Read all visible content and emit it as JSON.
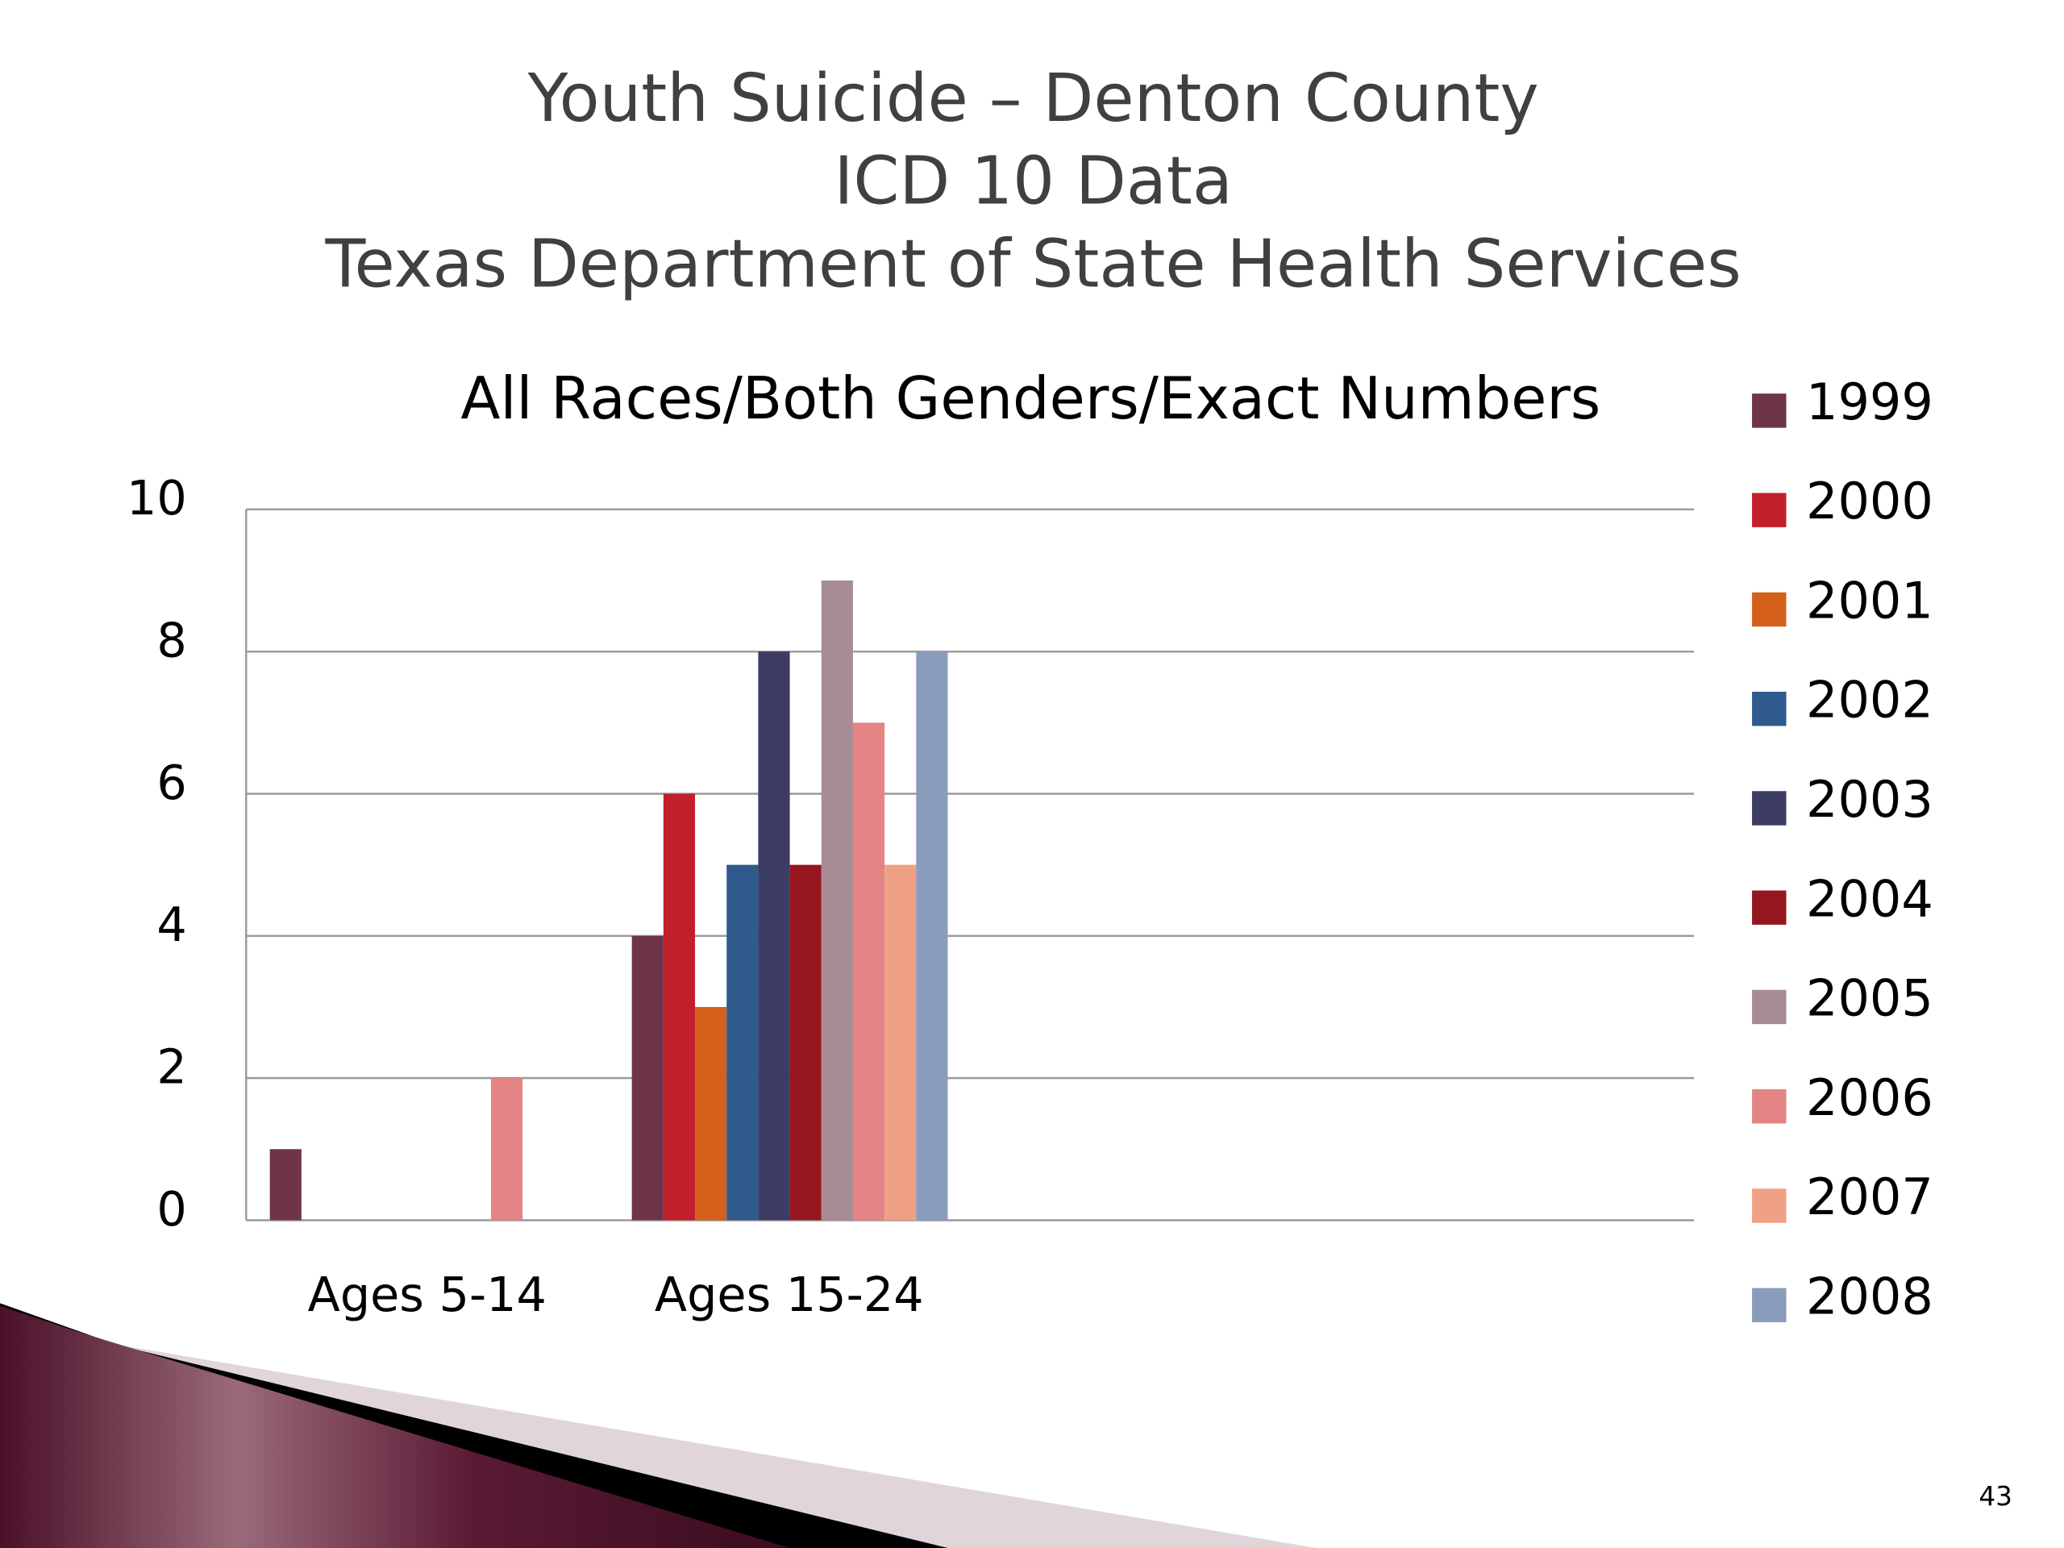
{
  "chart_data": {
    "type": "bar",
    "title": [
      "Youth Suicide – Denton County",
      "ICD 10 Data",
      "Texas Department of State Health Services"
    ],
    "subtitle": "All Races/Both Genders/Exact Numbers",
    "categories": [
      "Ages 5-14",
      "Ages 15-24",
      null,
      null
    ],
    "series": [
      {
        "name": "1999",
        "color": "#6e3449",
        "values": [
          1,
          4,
          null,
          null
        ]
      },
      {
        "name": "2000",
        "color": "#c0202a",
        "values": [
          0,
          6,
          null,
          null
        ]
      },
      {
        "name": "2001",
        "color": "#d4601c",
        "values": [
          0,
          3,
          null,
          null
        ]
      },
      {
        "name": "2002",
        "color": "#2e5a8c",
        "values": [
          0,
          5,
          null,
          null
        ]
      },
      {
        "name": "2003",
        "color": "#3c3c64",
        "values": [
          0,
          8,
          null,
          null
        ]
      },
      {
        "name": "2004",
        "color": "#961620",
        "values": [
          0,
          5,
          null,
          null
        ]
      },
      {
        "name": "2005",
        "color": "#a88c94",
        "values": [
          0,
          9,
          null,
          null
        ]
      },
      {
        "name": "2006",
        "color": "#e48484",
        "values": [
          2,
          7,
          null,
          null
        ]
      },
      {
        "name": "2007",
        "color": "#f0a084",
        "values": [
          0,
          5,
          null,
          null
        ]
      },
      {
        "name": "2008",
        "color": "#8a9cbc",
        "values": [
          0,
          8,
          null,
          null
        ]
      }
    ],
    "ylim": [
      0,
      10
    ],
    "yticks": [
      0,
      2,
      4,
      6,
      8,
      10
    ],
    "grid": true,
    "legend": "right",
    "page_number": "43"
  }
}
